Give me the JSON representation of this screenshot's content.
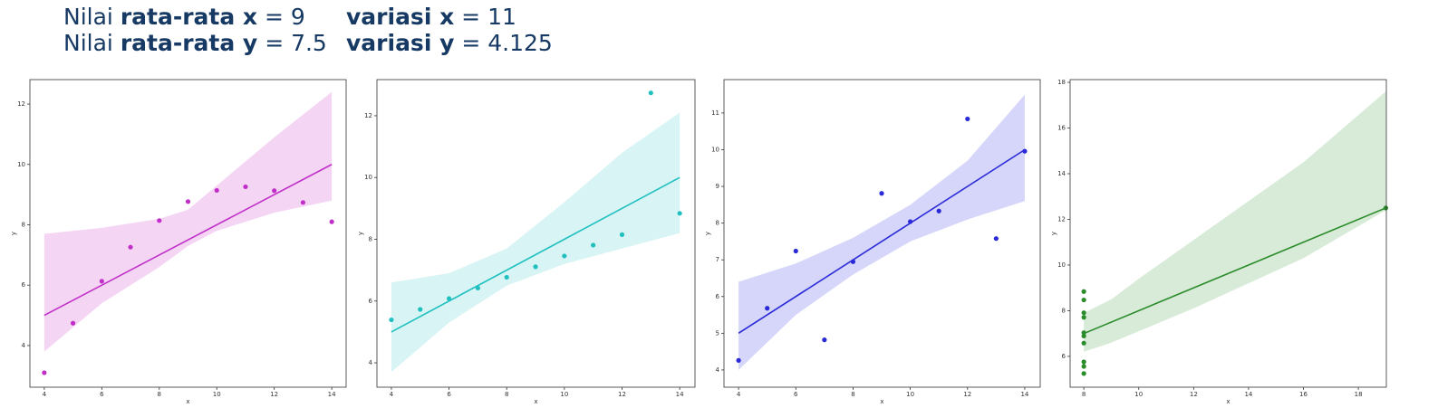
{
  "header": {
    "lines": [
      {
        "left": {
          "prefix": "Nilai",
          "bold": "rata-rata x",
          "rest": "= 9"
        },
        "right": {
          "bold": "variasi x",
          "rest": "= 11"
        }
      },
      {
        "left": {
          "prefix": "Nilai",
          "bold": "rata-rata y",
          "rest": "= 7.5"
        },
        "right": {
          "bold": "variasi y",
          "rest": "= 4.125"
        }
      }
    ]
  },
  "chart_data": [
    {
      "type": "scatter",
      "xlabel": "x",
      "ylabel": "y",
      "color": "#c030c8",
      "band_color": "#f4d6f4",
      "x": [
        10,
        8,
        13,
        9,
        11,
        14,
        6,
        4,
        12,
        7,
        5
      ],
      "y": [
        9.14,
        8.14,
        8.74,
        8.77,
        9.26,
        8.1,
        6.13,
        3.1,
        9.13,
        7.26,
        4.74
      ],
      "fit": {
        "x": [
          4,
          14
        ],
        "y": [
          5,
          10
        ]
      },
      "band": {
        "x": [
          4,
          6,
          8,
          9,
          10,
          12,
          14
        ],
        "lower": [
          3.8,
          5.4,
          6.6,
          7.3,
          7.8,
          8.4,
          8.8
        ],
        "upper": [
          7.7,
          7.9,
          8.2,
          8.5,
          9.3,
          10.9,
          12.4
        ]
      },
      "xlim": [
        3.5,
        14.5
      ],
      "ylim": [
        2.62,
        12.81
      ],
      "xticks": [
        4,
        6,
        8,
        10,
        12,
        14
      ],
      "yticks": [
        4,
        6,
        8,
        10,
        12
      ]
    },
    {
      "type": "scatter",
      "xlabel": "x",
      "ylabel": "y",
      "color": "#20c0c0",
      "band_color": "#d8f4f4",
      "x": [
        10,
        8,
        13,
        9,
        11,
        14,
        6,
        4,
        12,
        7,
        5
      ],
      "y": [
        7.46,
        6.77,
        12.74,
        7.11,
        7.81,
        8.84,
        6.08,
        5.39,
        8.15,
        6.42,
        5.73
      ],
      "fit": {
        "x": [
          4,
          14
        ],
        "y": [
          5,
          10
        ]
      },
      "band": {
        "x": [
          4,
          6,
          8,
          10,
          12,
          14
        ],
        "lower": [
          3.7,
          5.3,
          6.5,
          7.2,
          7.7,
          8.2
        ],
        "upper": [
          6.6,
          6.9,
          7.7,
          9.2,
          10.8,
          12.1
        ]
      },
      "xlim": [
        3.5,
        14.53
      ],
      "ylim": [
        3.21,
        13.17
      ],
      "xticks": [
        4,
        6,
        8,
        10,
        12,
        14
      ],
      "yticks": [
        4,
        6,
        8,
        10,
        12
      ]
    },
    {
      "type": "scatter",
      "xlabel": "x",
      "ylabel": "y",
      "color": "#2a2ad8",
      "band_color": "#d6d6fa",
      "x": [
        10,
        8,
        13,
        9,
        11,
        14,
        6,
        4,
        12,
        7,
        5
      ],
      "y": [
        8.04,
        6.95,
        7.58,
        8.81,
        8.33,
        9.96,
        7.24,
        4.26,
        10.84,
        4.82,
        5.68
      ],
      "fit": {
        "x": [
          4,
          14
        ],
        "y": [
          5,
          10
        ]
      },
      "band": {
        "x": [
          4,
          6,
          8,
          10,
          12,
          14
        ],
        "lower": [
          4.0,
          5.5,
          6.6,
          7.5,
          8.1,
          8.6
        ],
        "upper": [
          6.4,
          6.9,
          7.6,
          8.5,
          9.7,
          11.5
        ]
      },
      "xlim": [
        3.49,
        14.54
      ],
      "ylim": [
        3.53,
        11.91
      ],
      "xticks": [
        4,
        6,
        8,
        10,
        12,
        14
      ],
      "yticks": [
        4,
        5,
        6,
        7,
        8,
        9,
        10,
        11
      ]
    },
    {
      "type": "scatter",
      "xlabel": "x",
      "ylabel": "y",
      "color": "#2a8c2a",
      "band_color": "#d8ebd8",
      "x": [
        8,
        8,
        8,
        8,
        8,
        8,
        8,
        19,
        8,
        8,
        8
      ],
      "y": [
        6.58,
        5.76,
        7.71,
        8.84,
        8.47,
        7.04,
        5.25,
        12.5,
        5.56,
        7.91,
        6.89
      ],
      "fit": {
        "x": [
          8,
          19
        ],
        "y": [
          7,
          12.5
        ]
      },
      "band": {
        "x": [
          8,
          9,
          10,
          12,
          14,
          16,
          19
        ],
        "lower": [
          6.2,
          6.6,
          7.1,
          8.1,
          9.2,
          10.3,
          12.4
        ],
        "upper": [
          7.9,
          8.5,
          9.4,
          11.1,
          12.8,
          14.5,
          17.6
        ]
      },
      "xlim": [
        7.5,
        19.02
      ],
      "ylim": [
        4.65,
        18.12
      ],
      "xticks": [
        8,
        10,
        12,
        14,
        16,
        18
      ],
      "yticks": [
        6,
        8,
        10,
        12,
        14,
        16,
        18
      ]
    }
  ]
}
